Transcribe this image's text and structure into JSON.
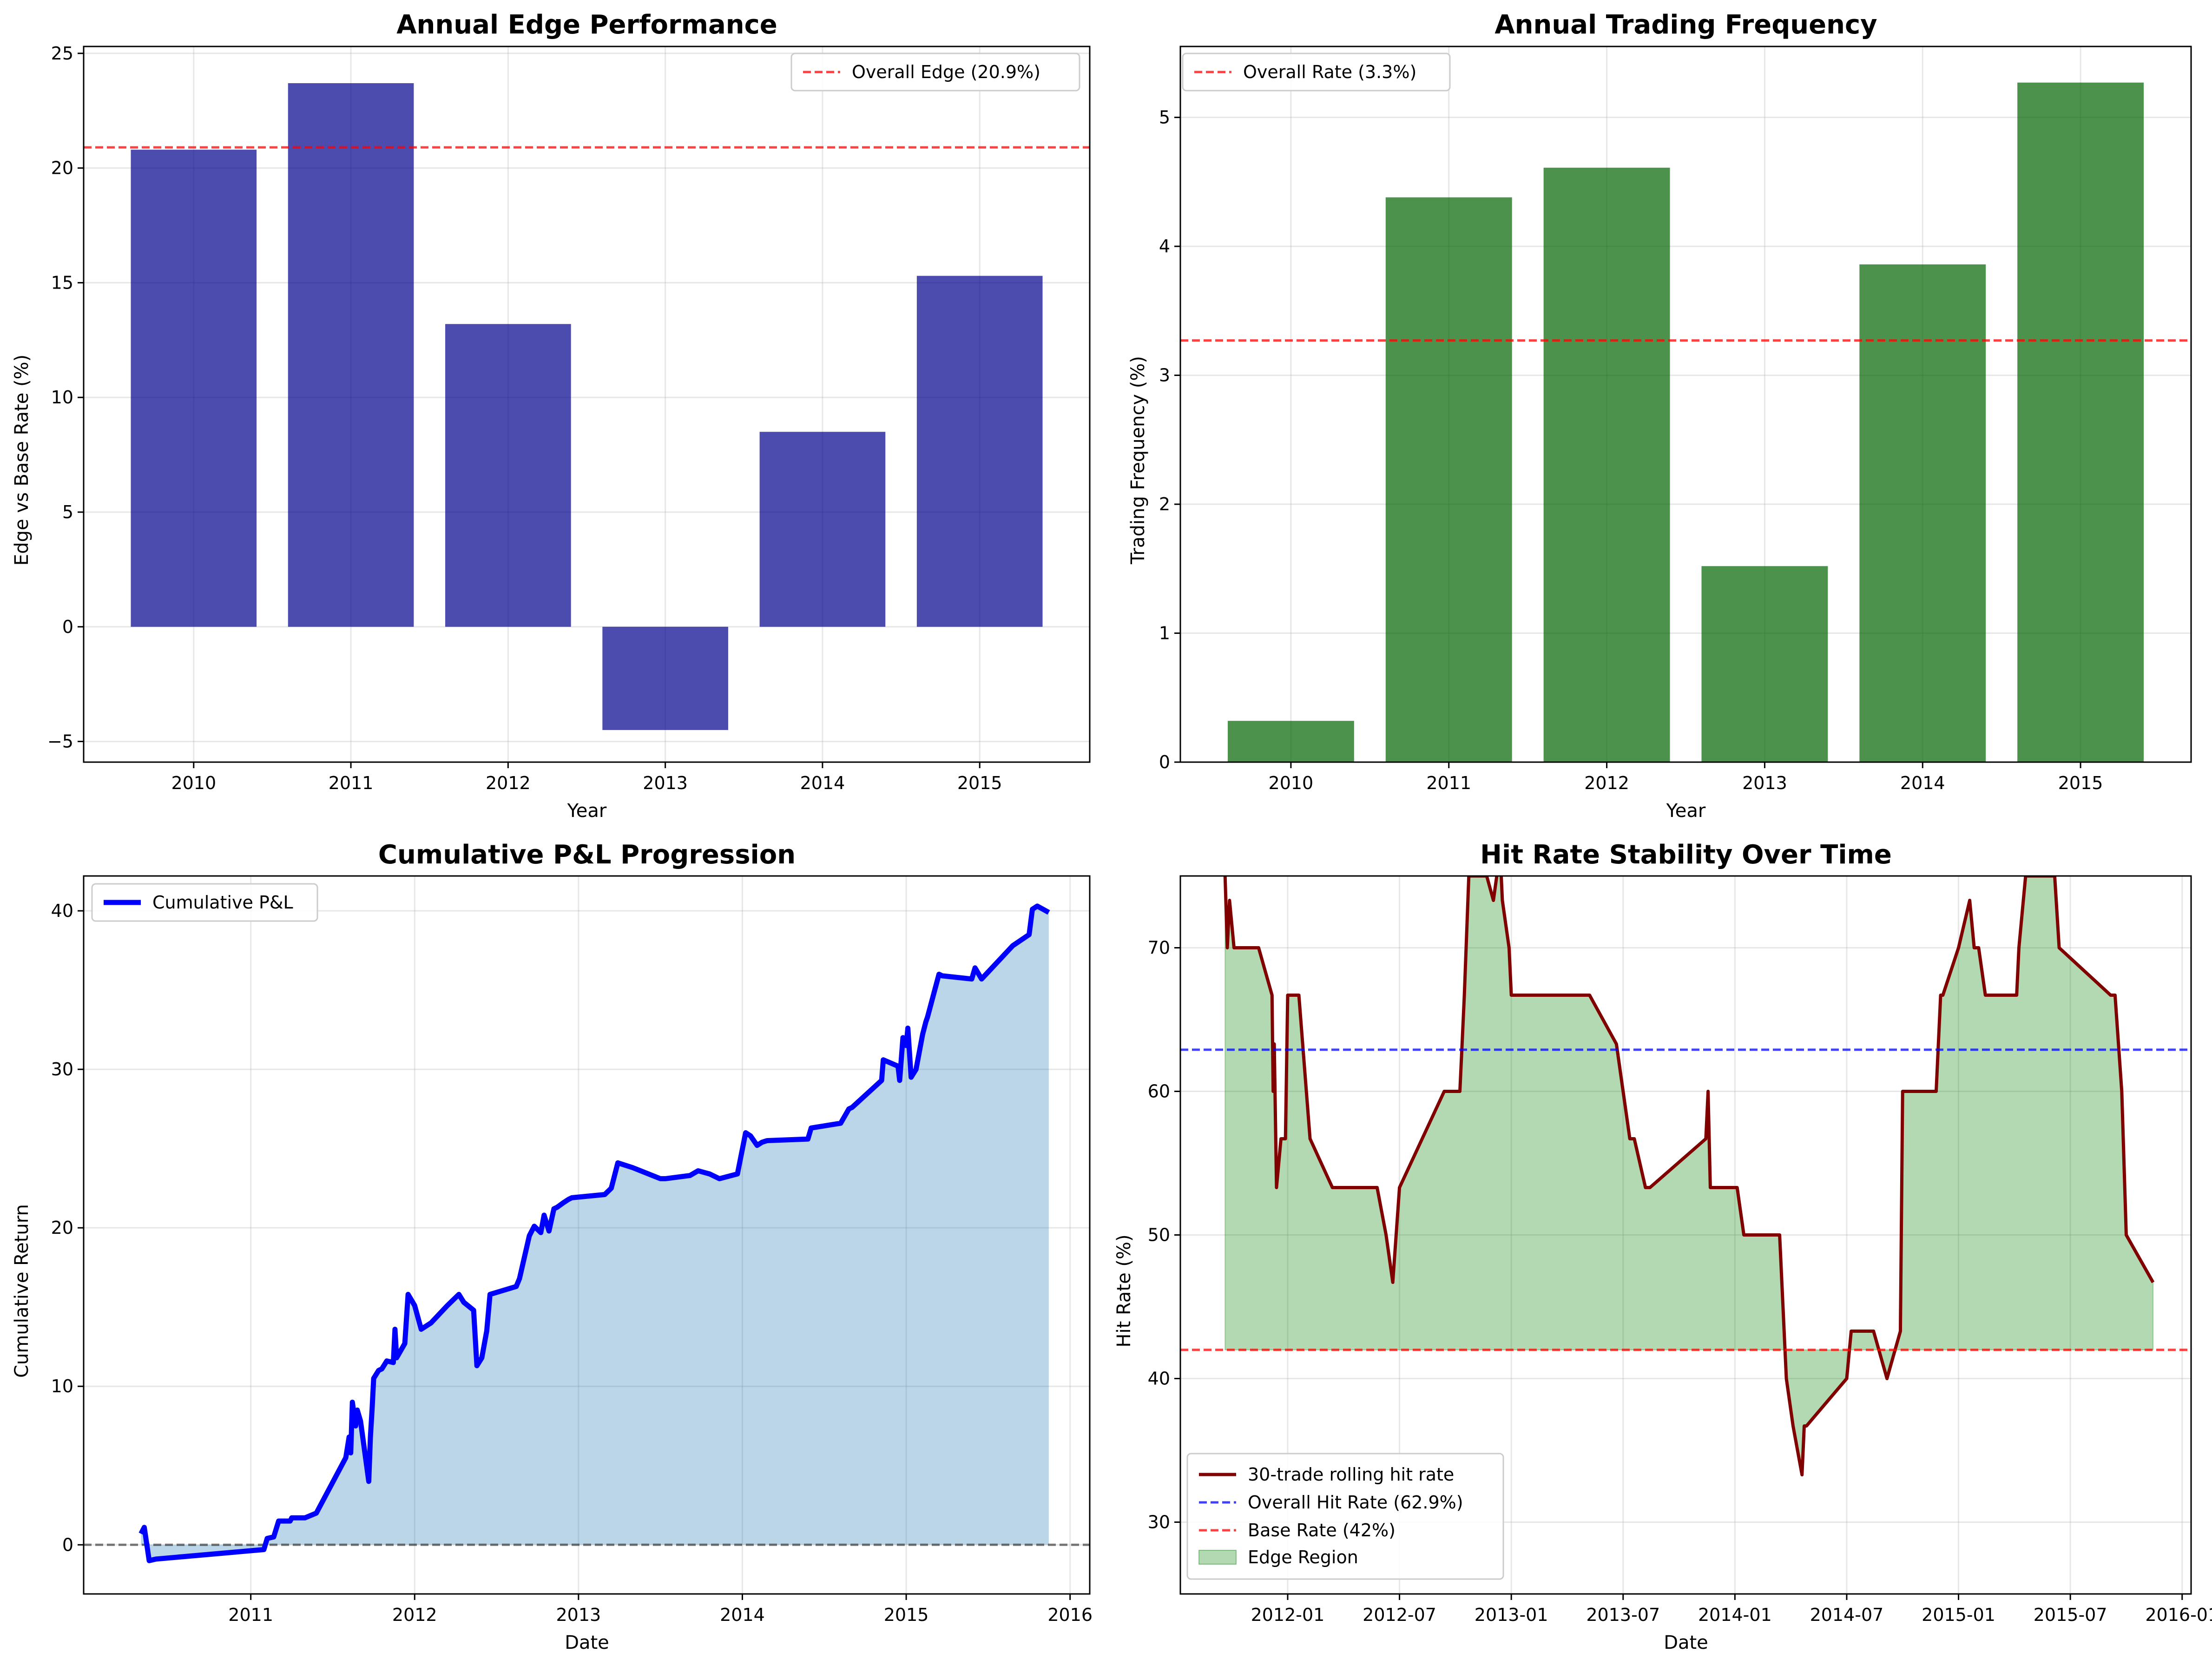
{
  "chart_data": [
    {
      "type": "bar",
      "title": "Annual Edge Performance",
      "xlabel": "Year",
      "ylabel": "Edge vs Base Rate (%)",
      "categories": [
        "2010",
        "2011",
        "2012",
        "2013",
        "2014",
        "2015"
      ],
      "values": [
        20.8,
        23.7,
        13.2,
        -4.5,
        8.5,
        15.3
      ],
      "bar_color": "#00008b",
      "ylim": [
        -5.9,
        25.3
      ],
      "yticks": [
        "−5",
        "0",
        "5",
        "10",
        "15",
        "20",
        "25"
      ],
      "grid": true,
      "reference_lines": [
        {
          "label": "Overall Edge (20.9%)",
          "y": 20.9,
          "color": "#ff0000",
          "style": "dashed"
        }
      ],
      "legend_position": "upper right"
    },
    {
      "type": "bar",
      "title": "Annual Trading Frequency",
      "xlabel": "Year",
      "ylabel": "Trading Frequency (%)",
      "categories": [
        "2010",
        "2011",
        "2012",
        "2013",
        "2014",
        "2015"
      ],
      "values": [
        0.32,
        4.38,
        4.61,
        1.52,
        3.86,
        5.27
      ],
      "bar_color": "#006400",
      "ylim": [
        0,
        5.55
      ],
      "yticks": [
        "0",
        "1",
        "2",
        "3",
        "4",
        "5"
      ],
      "grid": true,
      "reference_lines": [
        {
          "label": "Overall Rate (3.3%)",
          "y": 3.27,
          "color": "#ff0000",
          "style": "dashed"
        }
      ],
      "legend_position": "upper left"
    },
    {
      "type": "area",
      "title": "Cumulative P&L Progression",
      "xlabel": "Date",
      "ylabel": "Cumulative Return",
      "xlim": [
        2009.98,
        2016.12
      ],
      "ylim": [
        -3.1,
        42.2
      ],
      "xticks": [
        "2011",
        "2012",
        "2013",
        "2014",
        "2015",
        "2016"
      ],
      "yticks": [
        "0",
        "10",
        "20",
        "30",
        "40"
      ],
      "grid": true,
      "series": [
        {
          "name": "Cumulative P&L",
          "color": "#0000ff",
          "fill_color": "#1f77b4",
          "x": [
            2010.33,
            2010.35,
            2010.38,
            2010.42,
            2011.08,
            2011.1,
            2011.14,
            2011.17,
            2011.24,
            2011.25,
            2011.33,
            2011.4,
            2011.58,
            2011.6,
            2011.61,
            2011.62,
            2011.64,
            2011.65,
            2011.67,
            2011.72,
            2011.73,
            2011.74,
            2011.75,
            2011.78,
            2011.8,
            2011.83,
            2011.87,
            2011.88,
            2011.89,
            2011.94,
            2011.96,
            2012.0,
            2012.04,
            2012.1,
            2012.2,
            2012.27,
            2012.3,
            2012.36,
            2012.38,
            2012.41,
            2012.44,
            2012.46,
            2012.62,
            2012.64,
            2012.7,
            2012.73,
            2012.77,
            2012.79,
            2012.82,
            2012.85,
            2012.87,
            2012.91,
            2012.94,
            2012.96,
            2013.16,
            2013.2,
            2013.24,
            2013.27,
            2013.33,
            2013.5,
            2013.53,
            2013.68,
            2013.73,
            2013.8,
            2013.86,
            2013.97,
            2014.02,
            2014.05,
            2014.09,
            2014.12,
            2014.15,
            2014.4,
            2014.42,
            2014.6,
            2014.65,
            2014.67,
            2014.85,
            2014.86,
            2014.95,
            2014.96,
            2014.98,
            2015.0,
            2015.01,
            2015.03,
            2015.06,
            2015.1,
            2015.12,
            2015.13,
            2015.2,
            2015.22,
            2015.4,
            2015.42,
            2015.46,
            2015.65,
            2015.75,
            2015.77,
            2015.8,
            2015.87
          ],
          "y": [
            0.7,
            1.1,
            -1.0,
            -0.9,
            -0.3,
            0.4,
            0.5,
            1.5,
            1.5,
            1.7,
            1.7,
            2.0,
            5.5,
            6.8,
            5.8,
            9.0,
            7.5,
            8.5,
            7.8,
            4.0,
            6.8,
            8.5,
            10.5,
            11.0,
            11.1,
            11.6,
            11.5,
            13.6,
            11.8,
            12.7,
            15.8,
            15.1,
            13.6,
            14.0,
            15.1,
            15.8,
            15.3,
            14.8,
            11.3,
            11.8,
            13.5,
            15.8,
            16.3,
            16.8,
            19.5,
            20.1,
            19.7,
            20.8,
            19.8,
            21.2,
            21.3,
            21.6,
            21.8,
            21.9,
            22.1,
            22.5,
            24.1,
            24.0,
            23.8,
            23.1,
            23.1,
            23.3,
            23.6,
            23.4,
            23.1,
            23.4,
            26.0,
            25.8,
            25.2,
            25.4,
            25.5,
            25.6,
            26.3,
            26.6,
            27.5,
            27.6,
            29.3,
            30.6,
            30.2,
            29.3,
            32.0,
            31.5,
            32.6,
            29.5,
            30.0,
            32.2,
            33.0,
            33.3,
            36.0,
            35.9,
            35.7,
            36.4,
            35.7,
            37.8,
            38.5,
            40.1,
            40.3,
            39.9
          ]
        }
      ],
      "reference_lines": [
        {
          "y": 0,
          "color": "#000000",
          "style": "dashed"
        }
      ],
      "legend_position": "upper left"
    },
    {
      "type": "line",
      "title": "Hit Rate Stability Over Time",
      "xlabel": "Date",
      "ylabel": "Hit Rate (%)",
      "xlim": [
        2011.52,
        2016.04
      ],
      "ylim": [
        25,
        75
      ],
      "xticks": [
        "2012-01",
        "2012-07",
        "2013-01",
        "2013-07",
        "2014-01",
        "2014-07",
        "2015-01",
        "2015-07",
        "2016-01"
      ],
      "yticks": [
        "30",
        "40",
        "50",
        "60",
        "70"
      ],
      "grid": true,
      "series": [
        {
          "name": "30-trade rolling hit rate",
          "color": "#800000",
          "x": [
            2011.72,
            2011.73,
            2011.74,
            2011.76,
            2011.77,
            2011.87,
            2011.93,
            2011.935,
            2011.94,
            2011.95,
            2011.97,
            2011.99,
            2012.0,
            2012.05,
            2012.1,
            2012.2,
            2012.32,
            2012.4,
            2012.44,
            2012.47,
            2012.5,
            2012.7,
            2012.77,
            2012.78,
            2012.79,
            2012.81,
            2012.86,
            2012.89,
            2012.92,
            2012.95,
            2012.96,
            2012.99,
            2013.0,
            2013.02,
            2013.09,
            2013.35,
            2013.47,
            2013.53,
            2013.55,
            2013.6,
            2013.62,
            2013.87,
            2013.88,
            2013.89,
            2013.97,
            2014.01,
            2014.04,
            2014.2,
            2014.23,
            2014.26,
            2014.3,
            2014.31,
            2014.32,
            2014.5,
            2014.52,
            2014.58,
            2014.62,
            2014.68,
            2014.74,
            2014.75,
            2014.9,
            2014.92,
            2014.93,
            2015.0,
            2015.05,
            2015.07,
            2015.09,
            2015.12,
            2015.26,
            2015.27,
            2015.3,
            2015.43,
            2015.45,
            2015.68,
            2015.7,
            2015.73,
            2015.75,
            2015.87
          ],
          "y": [
            75,
            70,
            73.3,
            70,
            70,
            70,
            66.7,
            60,
            63.3,
            53.3,
            56.7,
            56.7,
            66.7,
            66.7,
            56.7,
            53.3,
            53.3,
            53.3,
            50,
            46.7,
            53.3,
            60,
            60,
            63.3,
            66.7,
            75,
            75,
            75,
            73.3,
            76.7,
            73.3,
            70,
            66.7,
            66.7,
            66.7,
            66.7,
            63.3,
            56.7,
            56.7,
            53.3,
            53.3,
            56.7,
            60,
            53.3,
            53.3,
            53.3,
            50,
            50,
            40,
            36.7,
            33.3,
            36.7,
            36.7,
            40,
            43.3,
            43.3,
            43.3,
            40,
            43.3,
            60,
            60,
            66.7,
            66.7,
            70,
            73.3,
            70,
            70,
            66.7,
            66.7,
            70,
            75,
            75,
            70,
            66.7,
            66.7,
            60,
            50,
            46.7
          ]
        }
      ],
      "reference_lines": [
        {
          "label": "Overall Hit Rate (62.9%)",
          "y": 62.9,
          "color": "#0000ff",
          "style": "dashed"
        },
        {
          "label": "Base Rate (42%)",
          "y": 42,
          "color": "#ff0000",
          "style": "dashed"
        }
      ],
      "fill": {
        "label": "Edge Region",
        "color": "#008000",
        "between": "series and base rate"
      },
      "legend_position": "lower left"
    }
  ]
}
